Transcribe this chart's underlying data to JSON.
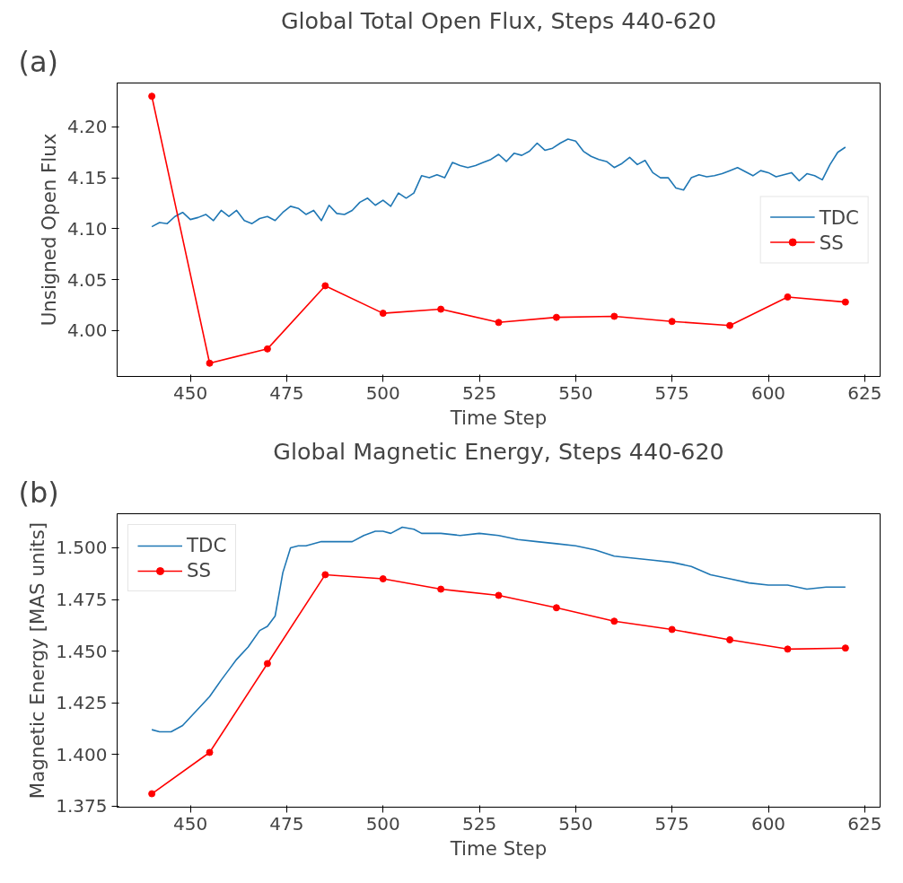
{
  "chart_data": [
    {
      "type": "line",
      "title": "Global Total Open Flux, Steps 440-620",
      "xlabel": "Time Step",
      "ylabel": "Unsigned Open Flux",
      "annotations": [
        "(a)"
      ],
      "legend": "right",
      "grid": false,
      "xlim": [
        431,
        629
      ],
      "xticks": [
        450,
        475,
        500,
        525,
        550,
        575,
        600,
        625
      ],
      "ylim": [
        3.955,
        4.243
      ],
      "yticks": [
        {
          "value": 4.0,
          "label": "4.00"
        },
        {
          "value": 4.05,
          "label": "4.05"
        },
        {
          "value": 4.1,
          "label": "4.10"
        },
        {
          "value": 4.15,
          "label": "4.15"
        },
        {
          "value": 4.2,
          "label": "4.20"
        }
      ],
      "series": [
        {
          "name": "TDC",
          "color": "#1f77b4",
          "marker": "none",
          "x": [
            440,
            442,
            444,
            446,
            448,
            450,
            452,
            454,
            456,
            458,
            460,
            462,
            464,
            466,
            468,
            470,
            472,
            474,
            476,
            478,
            480,
            482,
            484,
            486,
            488,
            490,
            492,
            494,
            496,
            498,
            500,
            502,
            504,
            506,
            508,
            510,
            512,
            514,
            516,
            518,
            520,
            522,
            524,
            526,
            528,
            530,
            532,
            534,
            536,
            538,
            540,
            542,
            544,
            546,
            548,
            550,
            552,
            554,
            556,
            558,
            560,
            562,
            564,
            566,
            568,
            570,
            572,
            574,
            576,
            578,
            580,
            582,
            584,
            586,
            588,
            590,
            592,
            594,
            596,
            598,
            600,
            602,
            604,
            606,
            608,
            610,
            612,
            614,
            616,
            618,
            620
          ],
          "values": [
            4.102,
            4.106,
            4.105,
            4.112,
            4.116,
            4.109,
            4.111,
            4.114,
            4.108,
            4.118,
            4.112,
            4.118,
            4.108,
            4.105,
            4.11,
            4.112,
            4.108,
            4.116,
            4.122,
            4.12,
            4.114,
            4.118,
            4.108,
            4.123,
            4.115,
            4.114,
            4.118,
            4.126,
            4.13,
            4.123,
            4.128,
            4.122,
            4.135,
            4.13,
            4.135,
            4.152,
            4.15,
            4.153,
            4.15,
            4.165,
            4.162,
            4.16,
            4.162,
            4.165,
            4.168,
            4.173,
            4.166,
            4.174,
            4.172,
            4.176,
            4.184,
            4.177,
            4.179,
            4.184,
            4.188,
            4.186,
            4.176,
            4.171,
            4.168,
            4.166,
            4.16,
            4.164,
            4.17,
            4.163,
            4.167,
            4.155,
            4.15,
            4.15,
            4.14,
            4.138,
            4.15,
            4.153,
            4.151,
            4.152,
            4.154,
            4.157,
            4.16,
            4.156,
            4.152,
            4.157,
            4.155,
            4.151,
            4.153,
            4.155,
            4.147,
            4.154,
            4.152,
            4.148,
            4.163,
            4.175,
            4.18
          ]
        },
        {
          "name": "SS",
          "color": "#ff0000",
          "marker": "circle",
          "x": [
            440,
            455,
            470,
            485,
            500,
            515,
            530,
            545,
            560,
            575,
            590,
            605,
            620
          ],
          "values": [
            4.23,
            3.968,
            3.982,
            4.044,
            4.017,
            4.021,
            4.008,
            4.013,
            4.014,
            4.009,
            4.005,
            4.033,
            4.028
          ]
        }
      ]
    },
    {
      "type": "line",
      "title": "Global Magnetic Energy, Steps 440-620",
      "xlabel": "Time Step",
      "ylabel": "Magnetic Energy [MAS units]",
      "annotations": [
        "(b)"
      ],
      "legend": "top left",
      "grid": false,
      "xlim": [
        431,
        629
      ],
      "xticks": [
        450,
        475,
        500,
        525,
        550,
        575,
        600,
        625
      ],
      "ylim": [
        1.3745,
        1.5165
      ],
      "yticks": [
        1.375,
        {
          "value": 1.4,
          "label": "1.400"
        },
        1.425,
        {
          "value": 1.45,
          "label": "1.450"
        },
        1.475,
        {
          "value": 1.5,
          "label": "1.500"
        }
      ],
      "series": [
        {
          "name": "TDC",
          "color": "#1f77b4",
          "marker": "none",
          "x": [
            440,
            442,
            445,
            448,
            450,
            453,
            455,
            458,
            460,
            462,
            465,
            468,
            470,
            472,
            474,
            476,
            478,
            480,
            484,
            488,
            492,
            495,
            498,
            500,
            502,
            505,
            508,
            510,
            515,
            520,
            525,
            530,
            535,
            540,
            545,
            550,
            555,
            560,
            565,
            570,
            575,
            580,
            585,
            590,
            595,
            600,
            605,
            610,
            615,
            620
          ],
          "values": [
            1.412,
            1.411,
            1.411,
            1.414,
            1.418,
            1.424,
            1.428,
            1.436,
            1.441,
            1.446,
            1.452,
            1.46,
            1.462,
            1.467,
            1.488,
            1.5,
            1.501,
            1.501,
            1.503,
            1.503,
            1.503,
            1.506,
            1.508,
            1.508,
            1.507,
            1.51,
            1.509,
            1.507,
            1.507,
            1.506,
            1.507,
            1.506,
            1.504,
            1.503,
            1.502,
            1.501,
            1.499,
            1.496,
            1.495,
            1.494,
            1.493,
            1.491,
            1.487,
            1.485,
            1.483,
            1.482,
            1.482,
            1.48,
            1.481,
            1.481
          ]
        },
        {
          "name": "SS",
          "color": "#ff0000",
          "marker": "circle",
          "x": [
            440,
            455,
            470,
            485,
            500,
            515,
            530,
            545,
            560,
            575,
            590,
            605,
            620
          ],
          "values": [
            1.381,
            1.401,
            1.444,
            1.487,
            1.485,
            1.48,
            1.477,
            1.471,
            1.4645,
            1.4605,
            1.4555,
            1.451,
            1.4515
          ]
        }
      ]
    }
  ]
}
